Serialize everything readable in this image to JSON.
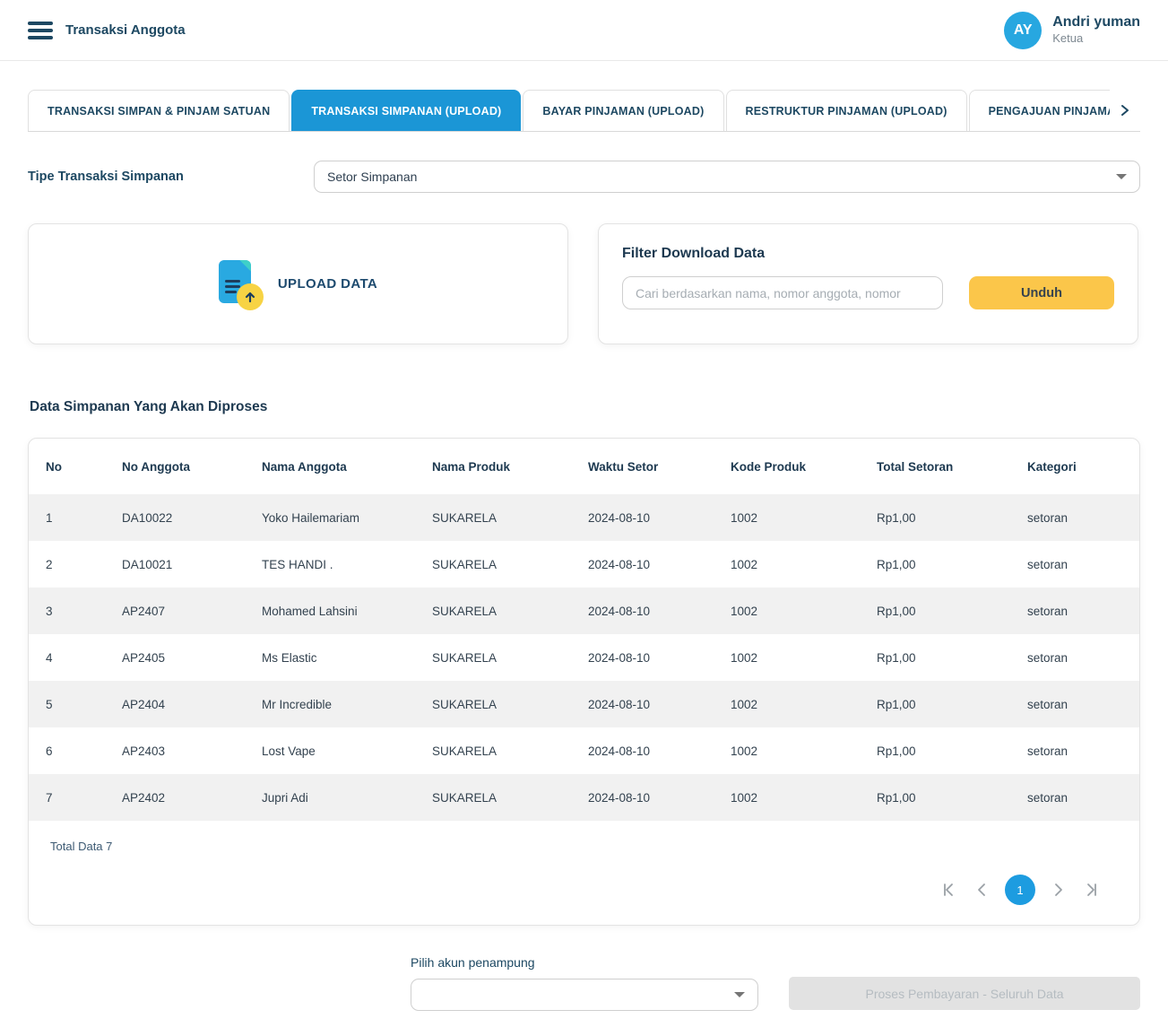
{
  "header": {
    "title": "Transaksi Anggota",
    "user": {
      "initials": "AY",
      "name": "Andri yuman",
      "role": "Ketua"
    }
  },
  "tabs": {
    "items": [
      {
        "label": "TRANSAKSI SIMPAN & PINJAM SATUAN",
        "active": false
      },
      {
        "label": "TRANSAKSI SIMPANAN (UPLOAD)",
        "active": true
      },
      {
        "label": "BAYAR PINJAMAN (UPLOAD)",
        "active": false
      },
      {
        "label": "RESTRUKTUR PINJAMAN (UPLOAD)",
        "active": false
      },
      {
        "label": "PENGAJUAN PINJAMA",
        "active": false
      }
    ]
  },
  "tipe_transaksi": {
    "label": "Tipe Transaksi Simpanan",
    "selected_value": "Setor Simpanan"
  },
  "upload_card": {
    "label": "UPLOAD DATA"
  },
  "download_card": {
    "title": "Filter Download Data",
    "search_placeholder": "Cari berdasarkan nama, nomor anggota, nomor",
    "button_label": "Unduh"
  },
  "table": {
    "title": "Data Simpanan Yang Akan Diproses",
    "columns": [
      "No",
      "No Anggota",
      "Nama Anggota",
      "Nama Produk",
      "Waktu Setor",
      "Kode Produk",
      "Total Setoran",
      "Kategori"
    ],
    "column_keys": [
      "no",
      "no_anggota",
      "nama_anggota",
      "nama_produk",
      "waktu_setor",
      "kode_produk",
      "total_setoran",
      "kategori"
    ],
    "rows": [
      {
        "no": "1",
        "no_anggota": "DA10022",
        "nama_anggota": "Yoko Hailemariam",
        "nama_produk": "SUKARELA",
        "waktu_setor": "2024-08-10",
        "kode_produk": "1002",
        "total_setoran": "Rp1,00",
        "kategori": "setoran"
      },
      {
        "no": "2",
        "no_anggota": "DA10021",
        "nama_anggota": "TES HANDI .",
        "nama_produk": "SUKARELA",
        "waktu_setor": "2024-08-10",
        "kode_produk": "1002",
        "total_setoran": "Rp1,00",
        "kategori": "setoran"
      },
      {
        "no": "3",
        "no_anggota": "AP2407",
        "nama_anggota": "Mohamed Lahsini",
        "nama_produk": "SUKARELA",
        "waktu_setor": "2024-08-10",
        "kode_produk": "1002",
        "total_setoran": "Rp1,00",
        "kategori": "setoran"
      },
      {
        "no": "4",
        "no_anggota": "AP2405",
        "nama_anggota": "Ms Elastic",
        "nama_produk": "SUKARELA",
        "waktu_setor": "2024-08-10",
        "kode_produk": "1002",
        "total_setoran": "Rp1,00",
        "kategori": "setoran"
      },
      {
        "no": "5",
        "no_anggota": "AP2404",
        "nama_anggota": "Mr Incredible",
        "nama_produk": "SUKARELA",
        "waktu_setor": "2024-08-10",
        "kode_produk": "1002",
        "total_setoran": "Rp1,00",
        "kategori": "setoran"
      },
      {
        "no": "6",
        "no_anggota": "AP2403",
        "nama_anggota": "Lost Vape",
        "nama_produk": "SUKARELA",
        "waktu_setor": "2024-08-10",
        "kode_produk": "1002",
        "total_setoran": "Rp1,00",
        "kategori": "setoran"
      },
      {
        "no": "7",
        "no_anggota": "AP2402",
        "nama_anggota": "Jupri Adi",
        "nama_produk": "SUKARELA",
        "waktu_setor": "2024-08-10",
        "kode_produk": "1002",
        "total_setoran": "Rp1,00",
        "kategori": "setoran"
      }
    ],
    "total_label": "Total Data 7",
    "pagination": {
      "current_page": "1"
    }
  },
  "footer": {
    "akun_label": "Pilih akun penampung",
    "akun_selected_value": "",
    "process_button_label": "Proses Pembayaran - Seluruh Data"
  },
  "colors": {
    "accent_blue": "#1b96d6",
    "avatar_blue": "#27a7e0",
    "button_yellow": "#fbc64a",
    "navy_text": "#1d4862",
    "stripe_gray": "#f1f1f1"
  }
}
